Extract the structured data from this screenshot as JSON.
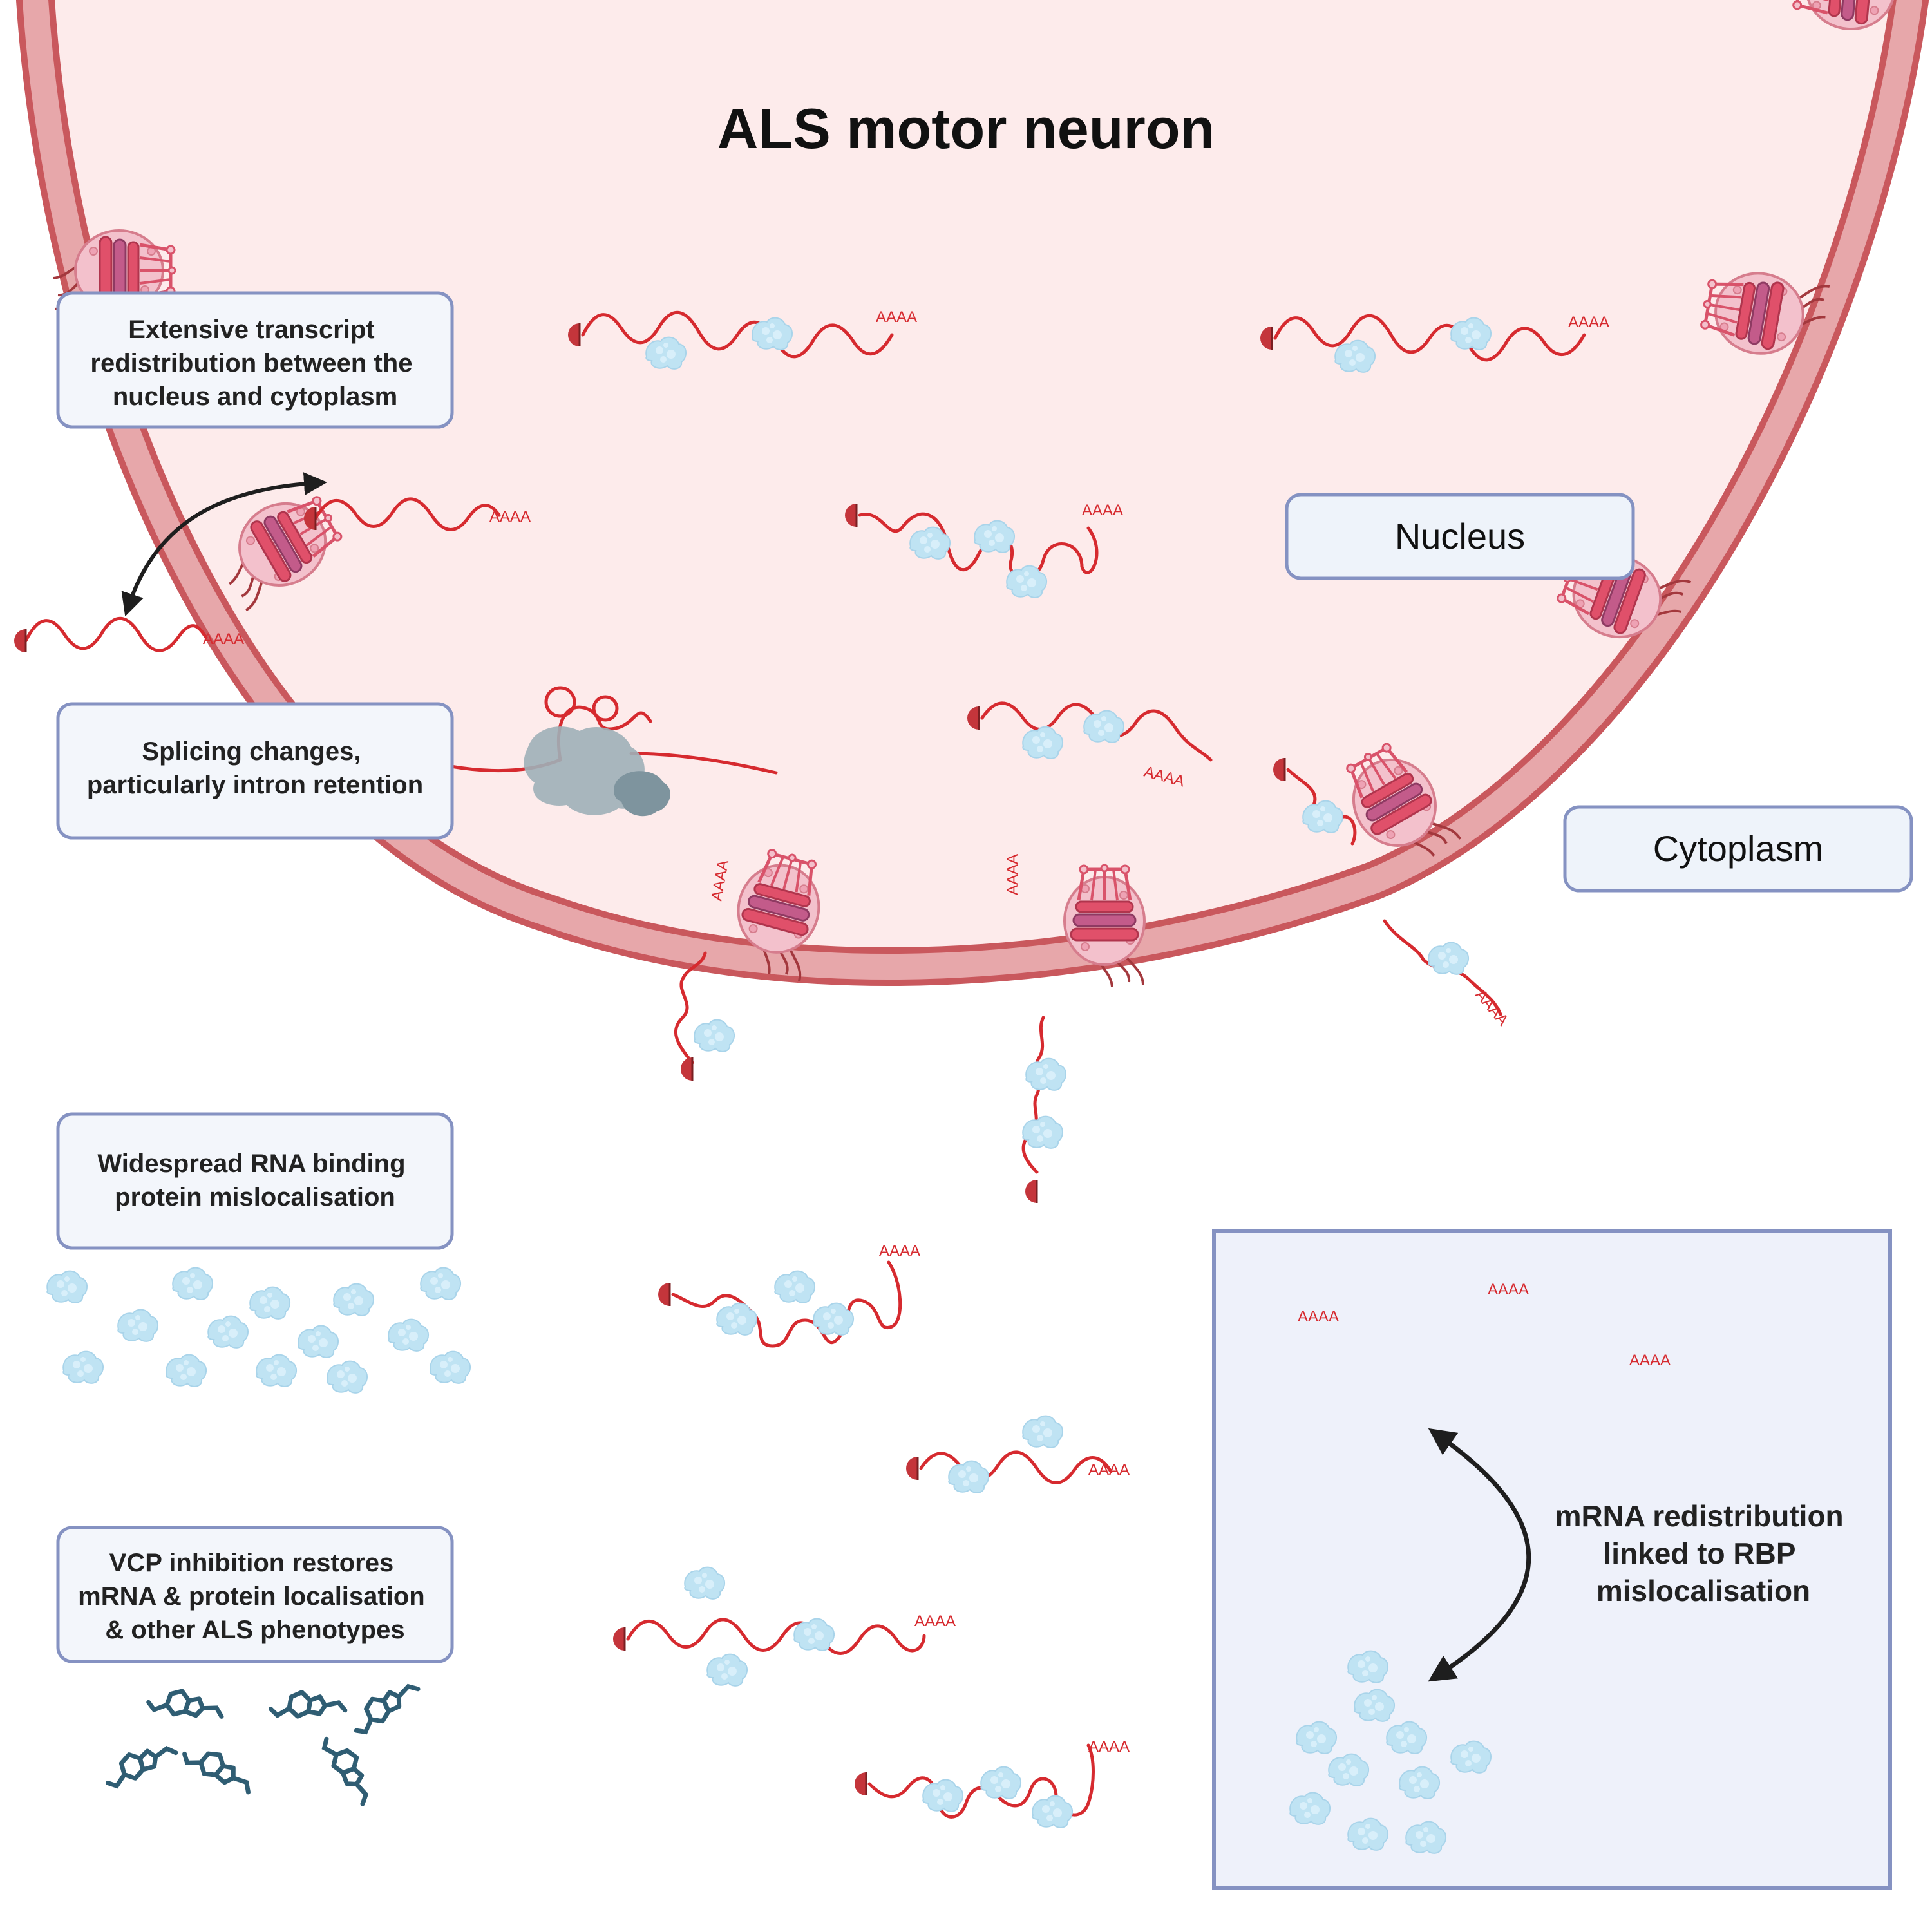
{
  "title": "ALS motor neuron",
  "labels": {
    "nucleus": "Nucleus",
    "cytoplasm": "Cytoplasm"
  },
  "callouts": {
    "transcript": [
      "Extensive transcript",
      "redistribution between the",
      "nucleus and cytoplasm"
    ],
    "splicing": [
      "Splicing changes,",
      "particularly intron retention"
    ],
    "rbp": [
      "Widespread RNA binding",
      "protein mislocalisation"
    ],
    "vcp": [
      "VCP inhibition restores",
      "mRNA & protein localisation",
      "& other ALS phenotypes"
    ]
  },
  "inset": {
    "text": [
      "mRNA redistribution",
      "linked to RBP",
      "mislocalisation"
    ]
  },
  "polyA": "AAAA",
  "colors": {
    "nucleus_fill": "#fdebeb",
    "envelope": "#c9585d",
    "envelope_fill": "#e7a7aa",
    "mrna": "#d62a2f",
    "cap": "#c4353b",
    "rbp": "#bfe3f3",
    "drug": "#2f5d73",
    "box_fill": "#f3f6fb",
    "box_stroke": "#8592c2",
    "inset_fill": "#eef1fa"
  },
  "icons": [
    "nuclear-pore-icon",
    "mrna-icon",
    "rbp-protein-icon",
    "spliceosome-icon",
    "vcp-inhibitor-molecule-icon",
    "bidirectional-arrow-icon"
  ]
}
